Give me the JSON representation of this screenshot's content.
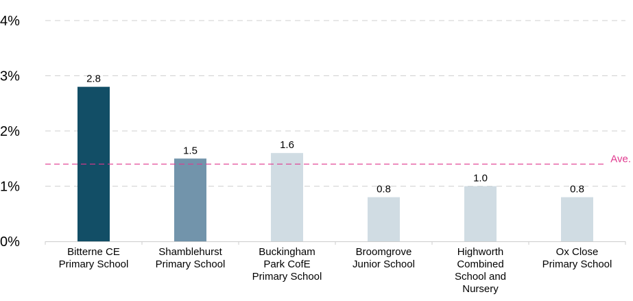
{
  "chart_data": {
    "type": "bar",
    "categories": [
      [
        "Bitterne CE",
        "Primary School"
      ],
      [
        "Shamblehurst",
        "Primary School"
      ],
      [
        "Buckingham",
        "Park CofE",
        "Primary School"
      ],
      [
        "Broomgrove",
        "Junior School"
      ],
      [
        "Highworth",
        "Combined",
        "School and",
        "Nursery"
      ],
      [
        "Ox Close",
        "Primary School"
      ]
    ],
    "values": [
      2.8,
      1.5,
      1.6,
      0.8,
      1.0,
      0.8
    ],
    "value_labels": [
      "2.8",
      "1.5",
      "1.6",
      "0.8",
      "1.0",
      "0.8"
    ],
    "bar_colors": [
      "#124E66",
      "#7294AB",
      "#D0DCE3",
      "#D0DCE3",
      "#D0DCE3",
      "#D0DCE3"
    ],
    "ylim": [
      0,
      4
    ],
    "yticks": [
      0,
      1,
      2,
      3,
      4
    ],
    "ytick_labels": [
      "0%",
      "1%",
      "2%",
      "3%",
      "4%"
    ],
    "reference_line": {
      "value": 1.4,
      "label": "Ave.",
      "color": "#E0388E"
    },
    "grid": true,
    "gridline_color": "#CFCFCF",
    "axis_color": "#CCCCCC",
    "title": "",
    "xlabel": "",
    "ylabel": ""
  }
}
